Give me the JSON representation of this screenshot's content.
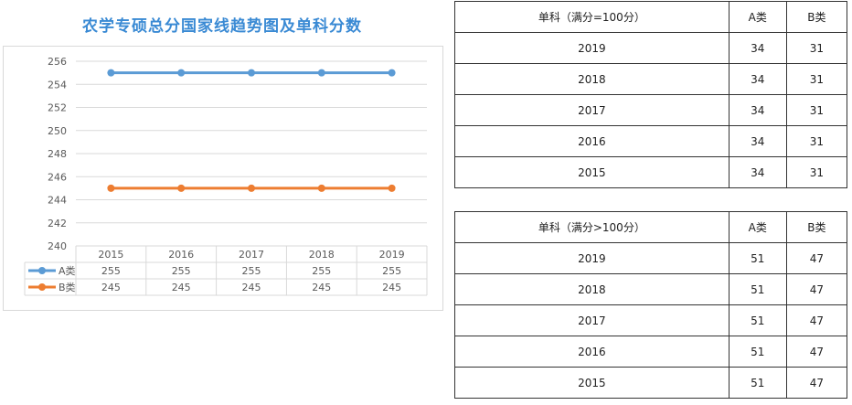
{
  "colors": {
    "title": "#3a8ad4",
    "series_a": "#5b9bd5",
    "series_b": "#ed7d31",
    "grid": "#d9d9d9",
    "axis_text": "#595959"
  },
  "chart_data": {
    "type": "line",
    "title": "农学专硕总分国家线趋势图及单科分数",
    "categories": [
      "2015",
      "2016",
      "2017",
      "2018",
      "2019"
    ],
    "series": [
      {
        "name": "A类",
        "values": [
          255,
          255,
          255,
          255,
          255
        ]
      },
      {
        "name": "B类",
        "values": [
          245,
          245,
          245,
          245,
          245
        ]
      }
    ],
    "ylim": [
      240,
      256
    ],
    "yticks": [
      "240",
      "242",
      "244",
      "246",
      "248",
      "250",
      "252",
      "254",
      "256"
    ],
    "grid": true,
    "legend": "data-table-below"
  },
  "tables": [
    {
      "header": [
        "单科（满分=100分）",
        "A类",
        "B类"
      ],
      "rows": [
        [
          "2019",
          "34",
          "31"
        ],
        [
          "2018",
          "34",
          "31"
        ],
        [
          "2017",
          "34",
          "31"
        ],
        [
          "2016",
          "34",
          "31"
        ],
        [
          "2015",
          "34",
          "31"
        ]
      ]
    },
    {
      "header": [
        "单科（满分>100分）",
        "A类",
        "B类"
      ],
      "rows": [
        [
          "2019",
          "51",
          "47"
        ],
        [
          "2018",
          "51",
          "47"
        ],
        [
          "2017",
          "51",
          "47"
        ],
        [
          "2016",
          "51",
          "47"
        ],
        [
          "2015",
          "51",
          "47"
        ]
      ]
    }
  ]
}
